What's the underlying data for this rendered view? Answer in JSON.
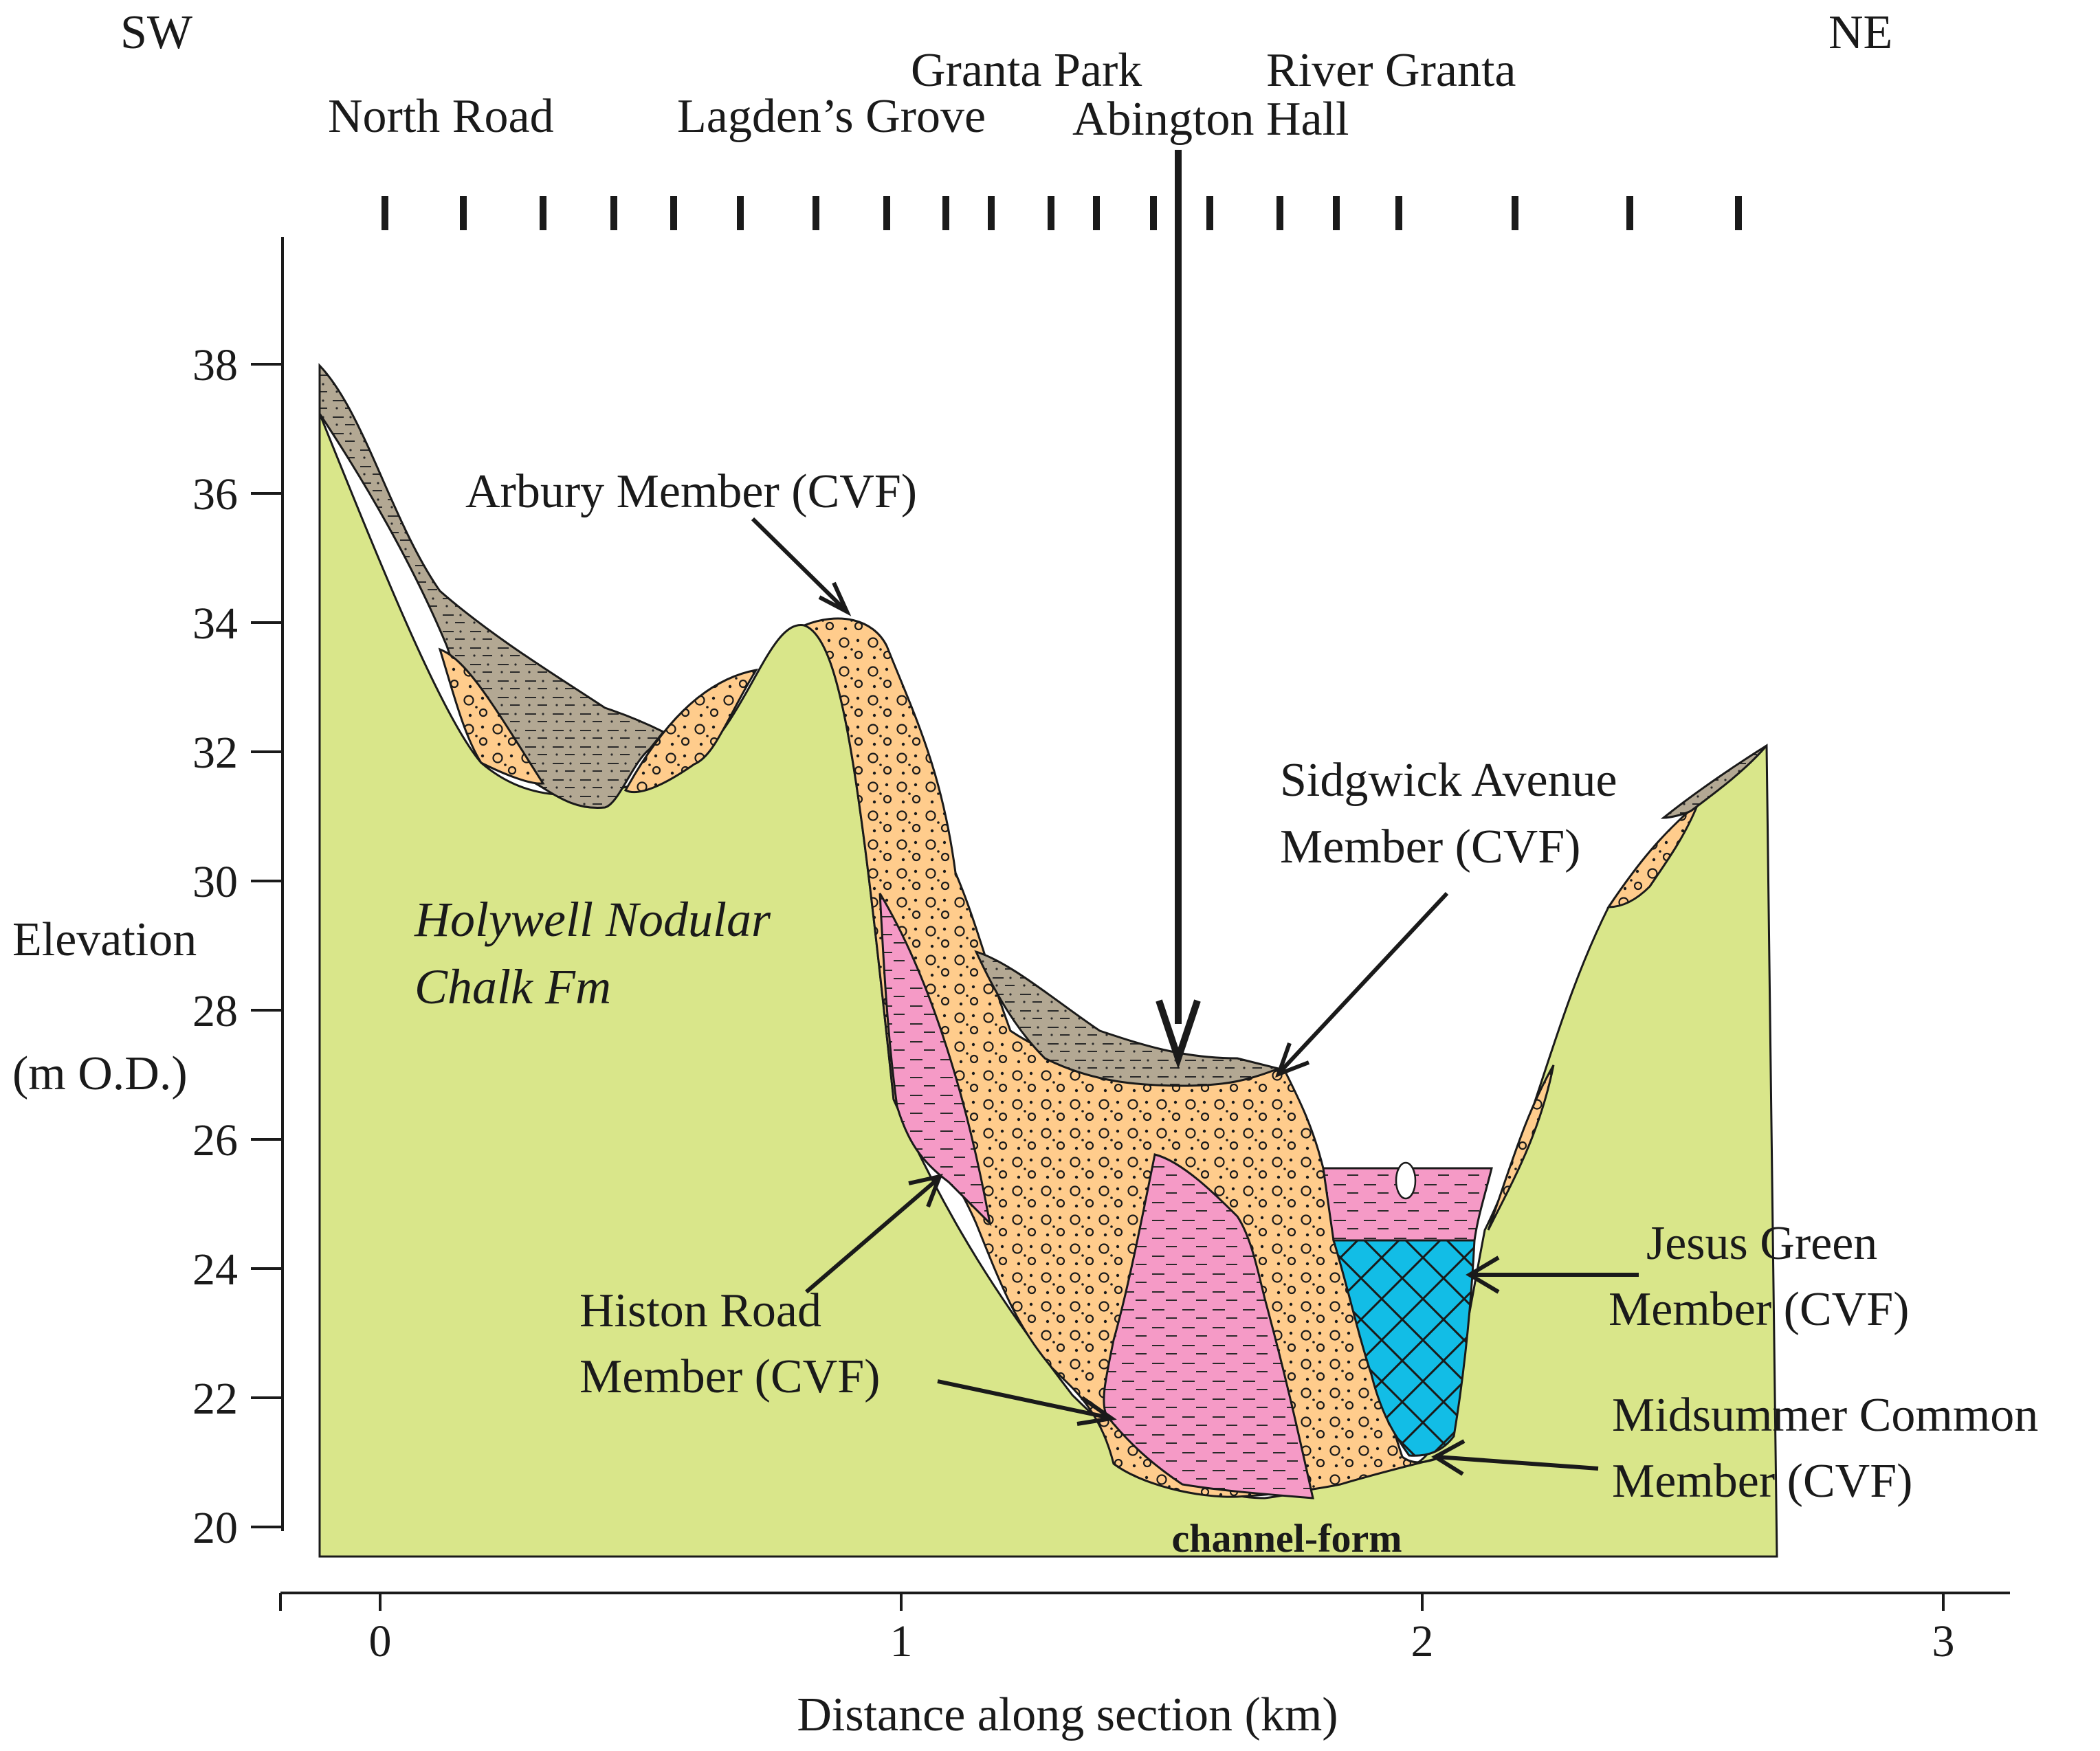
{
  "direction": {
    "left": "SW",
    "right": "NE"
  },
  "localities": {
    "north_road": "North Road",
    "lagdens_grove": "Lagden’s Grove",
    "granta_park": "Granta Park",
    "abington_hall": "Abington Hall",
    "river_granta": "River Granta"
  },
  "axes": {
    "y_label_line1": "Elevation",
    "y_label_line2": "(m O.D.)",
    "y_ticks": [
      "38",
      "36",
      "34",
      "32",
      "30",
      "28",
      "26",
      "24",
      "22",
      "20"
    ],
    "x_label": "Distance along section (km)",
    "x_ticks": [
      "0",
      "1",
      "2",
      "3"
    ]
  },
  "units": {
    "holywell": {
      "line1": "Holywell Nodular",
      "line2": "Chalk Fm"
    },
    "arbury": "Arbury Member (CVF)",
    "sidgwick": {
      "line1": "Sidgwick Avenue",
      "line2": "Member (CVF)"
    },
    "histon": {
      "line1": "Histon Road",
      "line2": "Member (CVF)"
    },
    "jesus_green": {
      "line1": "Jesus Green",
      "line2": "Member (CVF)"
    },
    "midsummer": {
      "line1": "Midsummer Common",
      "line2": "Member (CVF)"
    },
    "channel": "channel-form"
  },
  "colors": {
    "chalk": "#d9e68a",
    "gravel": "#ffcc8c",
    "silt_grey": "#b3a893",
    "pink_clay": "#f59ac6",
    "cyan": "#12bde6",
    "ink": "#1a1a1a"
  }
}
